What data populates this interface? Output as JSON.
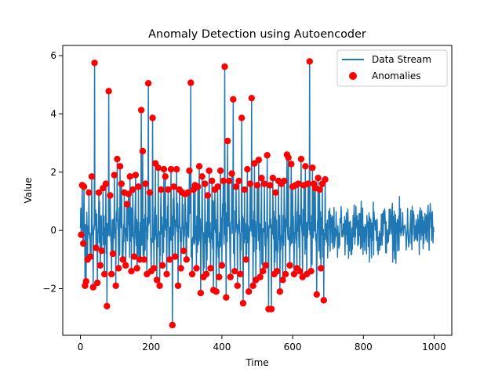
{
  "chart_data": {
    "type": "line",
    "title": "Anomaly Detection using Autoencoder",
    "xlabel": "Time",
    "ylabel": "Value",
    "xlim": [
      -50,
      1050
    ],
    "ylim": [
      -3.6,
      6.35
    ],
    "xticks": [
      0,
      200,
      400,
      600,
      800,
      1000
    ],
    "yticks": [
      -2,
      0,
      2,
      4,
      6
    ],
    "ytick_labels": [
      "−2",
      "0",
      "2",
      "4",
      "6"
    ],
    "grid": false,
    "legend_position": "top-right",
    "series": [
      {
        "name": "Data Stream",
        "type": "line",
        "color": "#1f77b4",
        "n_points": 1000,
        "description": "noisy stream, mostly within about -1.3..1.3"
      },
      {
        "name": "Anomalies",
        "type": "scatter",
        "color": "#ff0000",
        "points": [
          [
            2,
            -0.15
          ],
          [
            5,
            1.55
          ],
          [
            8,
            -0.45
          ],
          [
            10,
            1.5
          ],
          [
            13,
            -1.9
          ],
          [
            16,
            -1.75
          ],
          [
            20,
            -1.0
          ],
          [
            24,
            1.3
          ],
          [
            28,
            -0.9
          ],
          [
            32,
            1.85
          ],
          [
            36,
            -1.95
          ],
          [
            40,
            5.75
          ],
          [
            44,
            -0.6
          ],
          [
            48,
            -1.8
          ],
          [
            52,
            1.3
          ],
          [
            56,
            -1.2
          ],
          [
            60,
            -0.7
          ],
          [
            64,
            1.45
          ],
          [
            68,
            -1.5
          ],
          [
            72,
            1.6
          ],
          [
            75,
            -2.6
          ],
          [
            80,
            4.78
          ],
          [
            84,
            1.2
          ],
          [
            88,
            -1.5
          ],
          [
            92,
            -0.8
          ],
          [
            96,
            1.9
          ],
          [
            100,
            -1.9
          ],
          [
            104,
            2.45
          ],
          [
            108,
            -1.3
          ],
          [
            112,
            2.2
          ],
          [
            116,
            1.6
          ],
          [
            120,
            -1.0
          ],
          [
            124,
            1.3
          ],
          [
            128,
            -1.2
          ],
          [
            132,
            0.9
          ],
          [
            136,
            1.25
          ],
          [
            140,
            1.85
          ],
          [
            144,
            -1.4
          ],
          [
            148,
            1.4
          ],
          [
            152,
            -0.9
          ],
          [
            156,
            1.9
          ],
          [
            160,
            -1.3
          ],
          [
            164,
            1.5
          ],
          [
            168,
            -1.0
          ],
          [
            172,
            4.13
          ],
          [
            176,
            2.72
          ],
          [
            180,
            -1.0
          ],
          [
            184,
            1.6
          ],
          [
            188,
            -1.5
          ],
          [
            192,
            5.05
          ],
          [
            196,
            1.3
          ],
          [
            200,
            -1.4
          ],
          [
            204,
            3.86
          ],
          [
            208,
            -1.3
          ],
          [
            212,
            2.3
          ],
          [
            216,
            -1.7
          ],
          [
            220,
            2.15
          ],
          [
            224,
            -1.9
          ],
          [
            228,
            1.4
          ],
          [
            232,
            -1.2
          ],
          [
            236,
            2.1
          ],
          [
            240,
            1.85
          ],
          [
            244,
            -1.5
          ],
          [
            248,
            1.4
          ],
          [
            252,
            -1.0
          ],
          [
            256,
            2.1
          ],
          [
            260,
            -3.25
          ],
          [
            264,
            1.5
          ],
          [
            268,
            -0.9
          ],
          [
            272,
            2.1
          ],
          [
            276,
            -1.9
          ],
          [
            280,
            1.4
          ],
          [
            284,
            -1.3
          ],
          [
            288,
            1.3
          ],
          [
            292,
            -0.7
          ],
          [
            296,
            1.25
          ],
          [
            300,
            -1.0
          ],
          [
            304,
            1.3
          ],
          [
            308,
            2.05
          ],
          [
            312,
            5.07
          ],
          [
            316,
            -1.5
          ],
          [
            320,
            1.4
          ],
          [
            324,
            1.55
          ],
          [
            328,
            -1.3
          ],
          [
            332,
            1.5
          ],
          [
            336,
            2.2
          ],
          [
            340,
            -2.15
          ],
          [
            344,
            1.85
          ],
          [
            348,
            -1.6
          ],
          [
            352,
            1.6
          ],
          [
            356,
            -1.5
          ],
          [
            360,
            1.2
          ],
          [
            364,
            2.05
          ],
          [
            368,
            -1.3
          ],
          [
            372,
            1.7
          ],
          [
            376,
            -2.05
          ],
          [
            380,
            1.4
          ],
          [
            384,
            -2.1
          ],
          [
            388,
            1.5
          ],
          [
            392,
            -1.6
          ],
          [
            396,
            2.05
          ],
          [
            400,
            -1.2
          ],
          [
            404,
            1.7
          ],
          [
            408,
            5.62
          ],
          [
            412,
            -2.3
          ],
          [
            416,
            3.07
          ],
          [
            420,
            1.7
          ],
          [
            424,
            -1.6
          ],
          [
            428,
            1.95
          ],
          [
            432,
            4.5
          ],
          [
            436,
            -1.4
          ],
          [
            440,
            1.5
          ],
          [
            444,
            -1.9
          ],
          [
            448,
            1.7
          ],
          [
            452,
            -1.5
          ],
          [
            456,
            3.86
          ],
          [
            460,
            -2.5
          ],
          [
            464,
            1.4
          ],
          [
            468,
            -1.0
          ],
          [
            472,
            2.1
          ],
          [
            476,
            -2.1
          ],
          [
            480,
            1.6
          ],
          [
            484,
            4.54
          ],
          [
            488,
            -1.9
          ],
          [
            492,
            2.3
          ],
          [
            496,
            -1.7
          ],
          [
            500,
            1.55
          ],
          [
            504,
            2.42
          ],
          [
            508,
            -1.6
          ],
          [
            512,
            1.8
          ],
          [
            516,
            -1.4
          ],
          [
            520,
            1.6
          ],
          [
            524,
            -1.2
          ],
          [
            528,
            2.58
          ],
          [
            532,
            -2.7
          ],
          [
            536,
            1.55
          ],
          [
            540,
            -2.7
          ],
          [
            544,
            1.8
          ],
          [
            548,
            -1.5
          ],
          [
            552,
            1.3
          ],
          [
            556,
            -1.4
          ],
          [
            560,
            1.7
          ],
          [
            564,
            -2.1
          ],
          [
            568,
            1.6
          ],
          [
            572,
            -1.7
          ],
          [
            576,
            1.7
          ],
          [
            580,
            -1.5
          ],
          [
            584,
            2.6
          ],
          [
            588,
            2.5
          ],
          [
            592,
            -1.2
          ],
          [
            596,
            2.28
          ],
          [
            600,
            1.5
          ],
          [
            604,
            -1.5
          ],
          [
            608,
            1.55
          ],
          [
            612,
            -1.3
          ],
          [
            616,
            1.6
          ],
          [
            620,
            -1.4
          ],
          [
            624,
            2.45
          ],
          [
            628,
            -1.6
          ],
          [
            632,
            1.55
          ],
          [
            636,
            2.2
          ],
          [
            640,
            -1.5
          ],
          [
            644,
            1.6
          ],
          [
            648,
            5.8
          ],
          [
            652,
            -1.4
          ],
          [
            656,
            2.15
          ],
          [
            660,
            1.6
          ],
          [
            664,
            1.45
          ],
          [
            668,
            -2.2
          ],
          [
            672,
            1.8
          ],
          [
            676,
            1.4
          ],
          [
            680,
            -1.3
          ],
          [
            684,
            1.6
          ],
          [
            688,
            -2.4
          ],
          [
            692,
            1.75
          ]
        ]
      }
    ]
  }
}
